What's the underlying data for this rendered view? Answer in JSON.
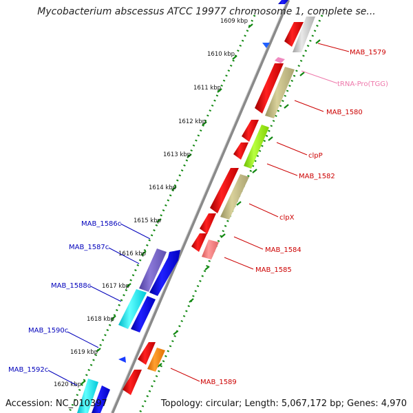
{
  "title": "Mycobacterium abscessus ATCC 19977 chromosome 1, complete se...",
  "footer": {
    "accession": "Accession: NC_010397",
    "stats": "Topology: circular; Length: 5,067,172 bp; Genes: 4,970"
  },
  "ticks": [
    "1609 kbp",
    "1610 kbp",
    "1611 kbp",
    "1612 kbp",
    "1613 kbp",
    "1614 kbp",
    "1615 kbp",
    "1616 kbp",
    "1617 kbp",
    "1618 kbp",
    "1619 kbp",
    "1620 kbp"
  ],
  "labels": {
    "mab_1579": "MAB_1579",
    "trna_pro": "tRNA-Pro(TGG)",
    "mab_1580": "MAB_1580",
    "clpp": "clpP",
    "mab_1582": "MAB_1582",
    "clpx": "clpX",
    "mab_1584": "MAB_1584",
    "mab_1585": "MAB_1585",
    "mab_1589": "MAB_1589",
    "mab_1586c": "MAB_1586c",
    "mab_1587c": "MAB_1587c",
    "mab_1588c": "MAB_1588c",
    "mab_1590c": "MAB_1590c",
    "mab_1592c": "MAB_1592c"
  },
  "colors": {
    "forward_gene_label": "#cc0000",
    "reverse_gene_label": "#0000bb",
    "trna_label": "#ee77aa",
    "backbone": "#888888",
    "tick_dots": "#118811"
  }
}
